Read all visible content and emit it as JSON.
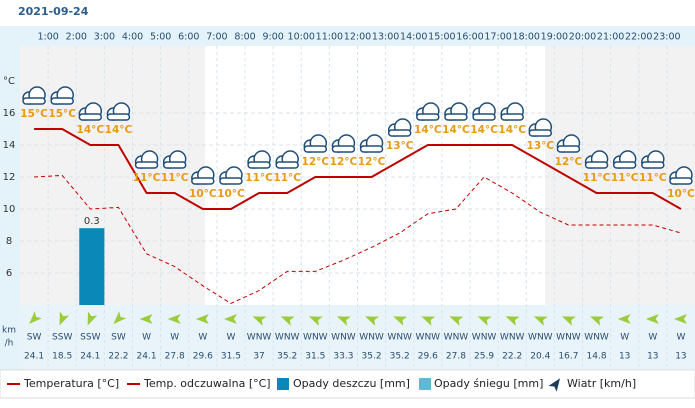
{
  "date": "2021-09-24",
  "chart_data": {
    "type": "line",
    "categories": [
      null,
      "1:00",
      "2:00",
      "3:00",
      "4:00",
      "5:00",
      "6:00",
      "7:00",
      "8:00",
      "9:00",
      "10:00",
      "11:00",
      "12:00",
      "13:00",
      "14:00",
      "15:00",
      "16:00",
      "17:00",
      "18:00",
      "19:00",
      "20:00",
      "21:00",
      "22:00",
      "23:00"
    ],
    "y_unit": "°C",
    "ylim": [
      4,
      20
    ],
    "yticks": [
      6,
      8,
      10,
      12,
      14,
      16
    ],
    "grid": true,
    "series": [
      {
        "name": "Temperatura [°C]",
        "color": "#c00000",
        "values": [
          15,
          15,
          14,
          14,
          11,
          11,
          10,
          10,
          11,
          11,
          12,
          12,
          12,
          13,
          14,
          14,
          14,
          14,
          13,
          12,
          11,
          11,
          11,
          10
        ],
        "value_labels": [
          "15°C",
          "15°C",
          "14°C",
          "14°C",
          "11°C",
          "11°C",
          "10°C",
          "10°C",
          "11°C",
          "11°C",
          "12°C",
          "12°C",
          "12°C",
          "13°C",
          "14°C",
          "14°C",
          "14°C",
          "14°C",
          "13°C",
          "12°C",
          "11°C",
          "11°C",
          "11°C",
          "10°C"
        ]
      },
      {
        "name": "Temp. odczuwalna [°C]",
        "color": "#c00000",
        "dashed": true,
        "values": [
          12,
          12.1,
          10,
          10.1,
          7.2,
          6.4,
          5.2,
          4.1,
          4.9,
          6.1,
          6.1,
          6.8,
          7.6,
          8.5,
          9.7,
          10,
          12,
          11,
          9.8,
          9,
          9,
          9,
          9,
          8.5
        ]
      },
      {
        "name": "Opady deszczu [mm]",
        "color": "#0a88b8",
        "axis": "y2",
        "values": [
          0,
          0,
          0.3,
          0,
          0,
          0,
          0,
          0,
          0,
          0,
          0,
          0,
          0,
          0,
          0,
          0,
          0,
          0,
          0,
          0,
          0,
          0,
          0,
          0
        ]
      },
      {
        "name": "Opady śniegu [mm]",
        "color": "#5bbad5",
        "axis": "y2",
        "values": [
          0,
          0,
          0,
          0,
          0,
          0,
          0,
          0,
          0,
          0,
          0,
          0,
          0,
          0,
          0,
          0,
          0,
          0,
          0,
          0,
          0,
          0,
          0,
          0
        ]
      }
    ],
    "y2lim": [
      0,
      1
    ],
    "wind": {
      "name": "Wiatr [km/h]",
      "unit_lines": [
        "km",
        "/h"
      ],
      "color": "#9ccc3c",
      "directions": [
        "SW",
        "SSW",
        "SSW",
        "SW",
        "W",
        "W",
        "W",
        "W",
        "WNW",
        "WNW",
        "WNW",
        "WNW",
        "WNW",
        "WNW",
        "WNW",
        "WNW",
        "WNW",
        "WNW",
        "WNW",
        "WNW",
        "WNW",
        "W",
        "W",
        "W"
      ],
      "speeds": [
        24.1,
        18.5,
        24.1,
        22.2,
        24.1,
        27.8,
        29.6,
        31.5,
        37,
        35.2,
        31.5,
        33.3,
        35.2,
        35.2,
        29.6,
        27.8,
        25.9,
        22.2,
        20.4,
        16.7,
        14.8,
        13,
        13,
        13
      ]
    }
  }
}
